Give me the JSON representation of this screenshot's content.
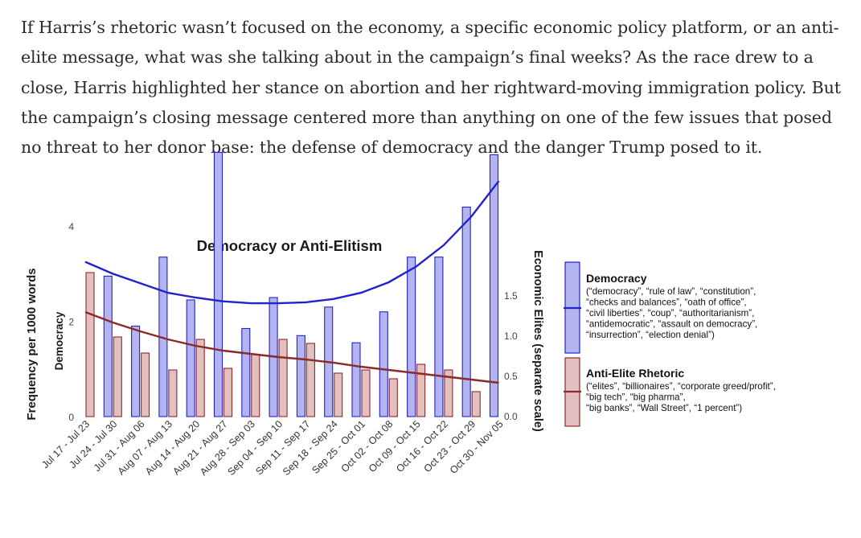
{
  "article": {
    "paragraph": "If Harris’s rhetoric wasn’t focused on the economy, a specific economic policy platform, or an anti-elite message, what was she talking about in the campaign’s final weeks? As the race drew to a close, Harris highlighted her stance on abortion and her rightward-moving immigration policy. But the campaign’s closing message centered more than anything on one of the few issues that posed no threat to her donor base: the defense of democracy and the danger Trump posed to it."
  },
  "chart_data": {
    "type": "bar",
    "title": "Democracy or Anti-Elitism",
    "ylabel_outer": "Frequency per 1000 words",
    "ylabel_left": "Democracy",
    "ylabel_right": "Economic Elites (separate scale)",
    "ylim_left": [
      0,
      5.6
    ],
    "ylim_right": [
      0,
      1.85
    ],
    "yticks_left": [
      "0",
      "2",
      "4"
    ],
    "yticks_right": [
      "0.0",
      "0.5",
      "1.0",
      "1.5"
    ],
    "categories": [
      "Jul 17 - Jul 23",
      "Jul 24 - Jul 30",
      "Jul 31 - Aug 06",
      "Aug 07 - Aug 13",
      "Aug 14 - Aug 20",
      "Aug 21 - Aug 27",
      "Aug 28 - Sep 03",
      "Sep 04 - Sep 10",
      "Sep 11 - Sep 17",
      "Sep 18 - Sep 24",
      "Sep 25 - Oct 01",
      "Oct 02 - Oct 08",
      "Oct 09 - Oct 15",
      "Oct 16 - Oct 22",
      "Oct 23 - Oct 29",
      "Oct 30 - Nov 05"
    ],
    "series": [
      {
        "name": "Democracy",
        "axis": "left",
        "color": "#2222cc",
        "fill": "#b4b4f0",
        "values": [
          0.0,
          2.95,
          1.9,
          3.35,
          2.45,
          5.55,
          1.85,
          2.5,
          1.7,
          2.3,
          1.55,
          2.2,
          3.35,
          3.35,
          4.4,
          5.5
        ],
        "trend": [
          3.25,
          3.0,
          2.8,
          2.6,
          2.5,
          2.42,
          2.38,
          2.38,
          2.4,
          2.47,
          2.6,
          2.82,
          3.15,
          3.6,
          4.2,
          4.95
        ]
      },
      {
        "name": "Anti-Elite Rhetoric",
        "axis": "right",
        "color": "#8b2a2a",
        "fill": "#e3c0c0",
        "values": [
          1.79,
          0.99,
          0.79,
          0.58,
          0.96,
          0.6,
          0.77,
          0.96,
          0.91,
          0.54,
          0.58,
          0.47,
          0.65,
          0.58,
          0.31,
          0.0
        ],
        "trend": [
          1.3,
          1.17,
          1.06,
          0.96,
          0.88,
          0.82,
          0.78,
          0.74,
          0.71,
          0.67,
          0.62,
          0.58,
          0.54,
          0.5,
          0.46,
          0.42
        ]
      }
    ],
    "legend": [
      {
        "title": "Democracy",
        "lines": [
          "(“democracy”, “rule of law”, “constitution”,",
          "“checks and balances”, “oath of office”,",
          "“civil liberties”, “coup”, “authoritarianism”,",
          "“antidemocratic”, “assault on democracy”,",
          "“insurrection”, “election denial”)"
        ]
      },
      {
        "title": "Anti-Elite Rhetoric",
        "lines": [
          "(“elites”, “billionaires”, “corporate greed/profit”,",
          "“big tech”, “big pharma”,",
          "“big banks”, “Wall Street”, “1 percent”)"
        ]
      }
    ],
    "legend_position": "right",
    "grid": false
  }
}
